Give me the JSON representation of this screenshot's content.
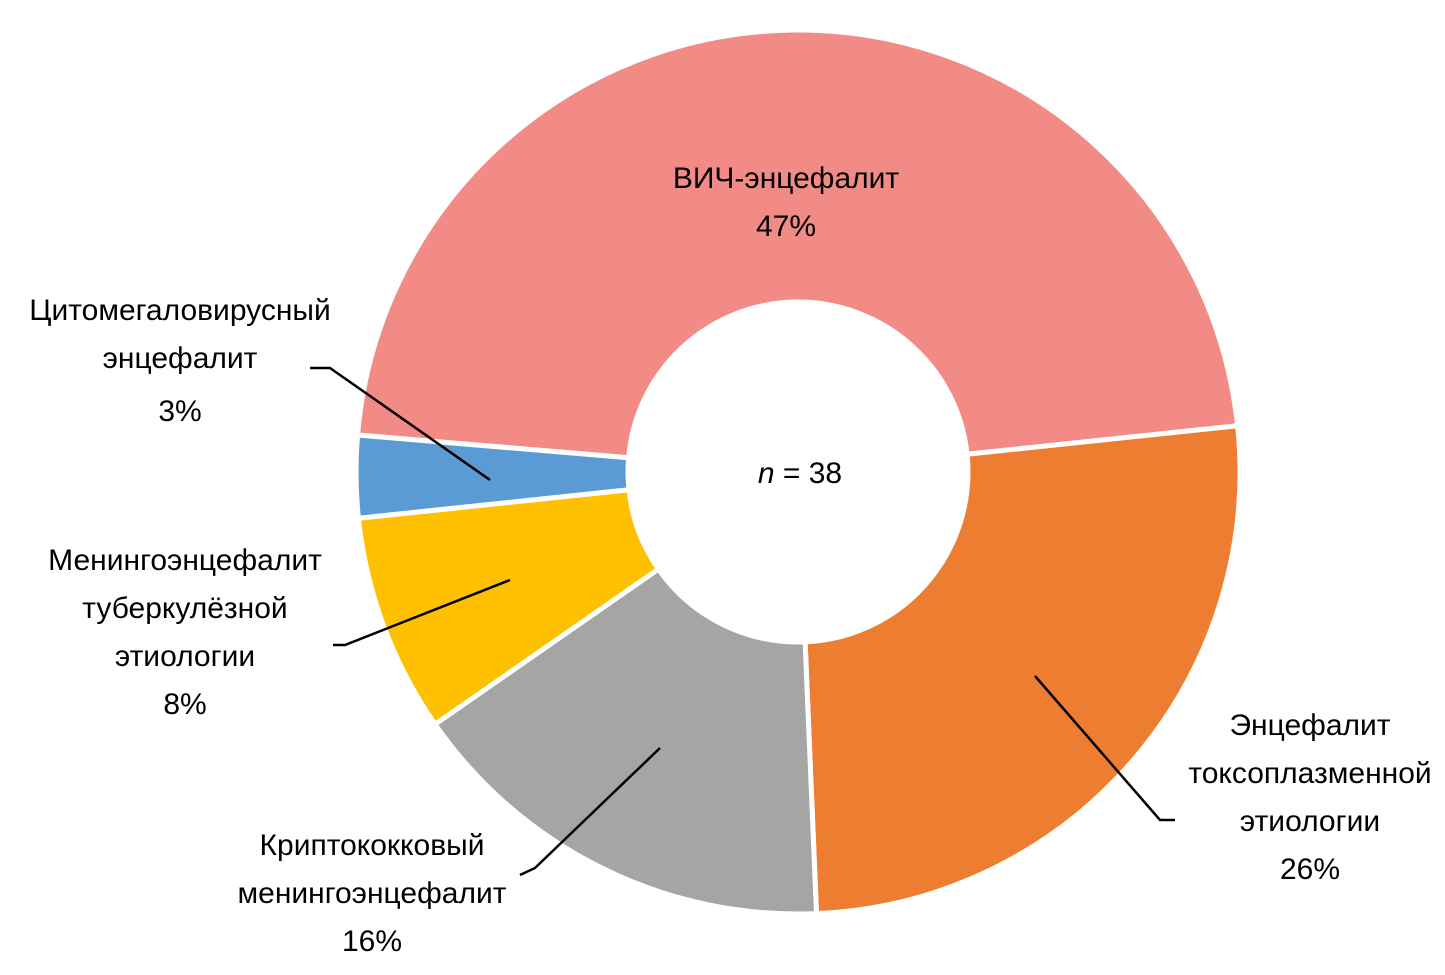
{
  "chart_data": {
    "type": "donut",
    "categories": [
      "ВИЧ-энцефалит",
      "Энцефалит токсоплазменной этиологии",
      "Криптококковый менингоэнцефалит",
      "Менингоэнцефалит туберкулёзной этиологии",
      "Цитомегаловирусный энцефалит"
    ],
    "values": [
      47,
      26,
      16,
      8,
      3
    ],
    "value_labels": [
      "47%",
      "26%",
      "16%",
      "8%",
      "3%"
    ],
    "colors": [
      "#f28b86",
      "#ed7d31",
      "#a5a5a5",
      "#ffc000",
      "#5b9bd5"
    ],
    "annotation": {
      "variable": "n",
      "text": "= 38"
    }
  }
}
